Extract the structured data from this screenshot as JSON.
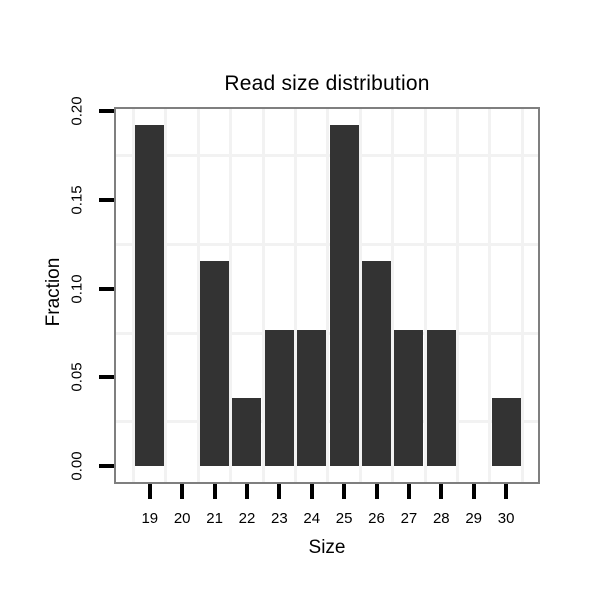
{
  "title": "Read size distribution",
  "chart_data": {
    "type": "bar",
    "title": "Read size distribution",
    "xlabel": "Size",
    "ylabel": "Fraction",
    "categories": [
      "19",
      "20",
      "21",
      "22",
      "23",
      "24",
      "25",
      "26",
      "27",
      "28",
      "29",
      "30"
    ],
    "values": [
      0.1923,
      0,
      0.1154,
      0.0385,
      0.0769,
      0.0769,
      0.1923,
      0.1154,
      0.0769,
      0.0769,
      0,
      0.0385
    ],
    "y_ticks": [
      0,
      0.05,
      0.1,
      0.15,
      0.2
    ],
    "y_tick_labels": [
      "0.00",
      "0.05",
      "0.10",
      "0.15",
      "0.20"
    ],
    "ylim": [
      0,
      0.2
    ],
    "grid": "minor-only",
    "minor_y_gridlines": [
      0.025,
      0.075,
      0.125,
      0.175
    ],
    "legend": "none",
    "colors": {
      "bar": "#333333",
      "panel_border": "#7f7f7f",
      "gridline": "#f2f2f2",
      "background": "#ffffff",
      "tick": "#000000",
      "text": "#000000"
    }
  }
}
